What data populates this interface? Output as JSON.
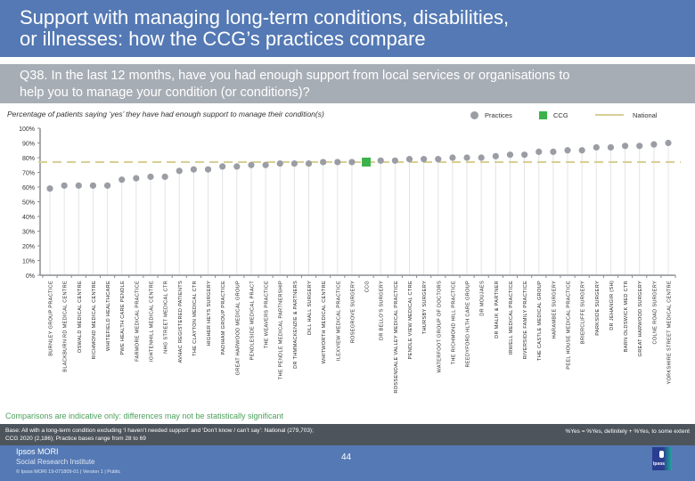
{
  "header": {
    "title_line1": "Support with managing long-term conditions, disabilities,",
    "title_line2": "or illnesses: how the CCG’s practices compare"
  },
  "question": {
    "line1": "Q38. In the last 12 months, have you had enough support from local services or organisations to",
    "line2": "help you to manage your condition (or conditions)?"
  },
  "chart_data": {
    "type": "scatter",
    "title": "Percentage of patients saying ‘yes’ they have had enough support to manage their condition(s)",
    "xlabel": "",
    "ylabel": "",
    "ylim": [
      0,
      100
    ],
    "y_ticks": [
      "0%",
      "10%",
      "20%",
      "30%",
      "40%",
      "50%",
      "60%",
      "70%",
      "80%",
      "90%",
      "100%"
    ],
    "grid": false,
    "legend_position": "top-right",
    "legend": [
      {
        "name": "Practices",
        "marker": "circle",
        "color": "#9a9da3"
      },
      {
        "name": "CCG",
        "marker": "square",
        "color": "#3bb34a"
      },
      {
        "name": "National",
        "marker": "dashed-line",
        "color": "#d8cf96"
      }
    ],
    "national_value": 77,
    "categories": [
      "BURNLEY GROUP PRACTICE",
      "BLACKBURN RD MEDICAL CENTRE",
      "OSWALD MEDICAL CENTRE",
      "RICHMOND MEDICAL CENTRE",
      "WHITEFIELD HEALTHCARE",
      "PWE HEALTH CARE PENDLE",
      "FARMORE MEDICAL PRACTICE",
      "IGHTENHILL MEDICAL CENTRE",
      "NHG STREET MEDICAL CTR",
      "AVHAC REGISTERED PATIENTS",
      "THE CLAYTON MEDICAL CTR",
      "HIGHER HEYS SURGERY",
      "PADIHAM GROUP PRACTICE",
      "GREAT HARWOOD MEDICAL GROUP",
      "PENDLESIDE MEDICAL PRACT",
      "THE WEAVERS PRACTICE",
      "THE PENDLE MEDICAL PARTNERSHIP",
      "DR THMMACKENZIE & PARTNERS",
      "DILL HALL SURGERY",
      "WHITWORTH MEDICAL CENTRE",
      "ILEXVIEW MEDICAL PRACTICE",
      "ROSEGROVE SURGERY",
      "CCG",
      "DR BELLO'S SURGERY",
      "ROSSENDALE VALLEY MEDICAL PRACTICE",
      "PENDLE VIEW MEDICAL CTRE",
      "THURSBY SURGERY",
      "WATERFOOT GROUP OF DOCTORS",
      "THE RICHMOND HILL PRACTICE",
      "REEDYFORD HLTH CARE GROUP",
      "DR MOUJAES",
      "DR MALIK & PARTNER",
      "IRWELL MEDICAL PRACTICE",
      "RIVERSIDE FAMILY PRACTICE",
      "THE CASTLE MEDICAL GROUP",
      "HARAMBEE SURGERY",
      "PEEL HOUSE MEDICAL PRACTICE",
      "BRIERCLIFFE SURGERY",
      "PARKSIDE SURGERY",
      "DR JEHANGIR (SH)",
      "BARN OLDSWICK MED CTR",
      "GREAT HARWOOD SURGERY",
      "COLNE ROAD SURGERY",
      "YORKSHIRE STREET MEDICAL CENTRE"
    ],
    "values": [
      59,
      61,
      61,
      61,
      61,
      65,
      66,
      67,
      67,
      71,
      72,
      72,
      74,
      74,
      75,
      75,
      76,
      76,
      76,
      77,
      77,
      77,
      77,
      78,
      78,
      79,
      79,
      79,
      80,
      80,
      80,
      81,
      82,
      82,
      84,
      84,
      85,
      85,
      87,
      87,
      88,
      88,
      89,
      90
    ],
    "ccg_index": 22
  },
  "note": "Comparisons are indicative only: differences may not be statistically significant",
  "base": {
    "text": "Base: All with a long-term condition excluding ‘I haven’t needed support’ and ‘Don’t know / can’t say’: National (279,703); CCG 2020 (2,186); Practice bases range from 28 to 69",
    "definition": "%Yes = %Yes, definitely + %Yes, to some extent"
  },
  "footer": {
    "brand": "Ipsos MORI",
    "institute": "Social Research Institute",
    "copyright": "© Ipsos MORI     19-071809-01 | Version 1 | Public",
    "page_number": "44",
    "logo_text": "Ipsos"
  }
}
